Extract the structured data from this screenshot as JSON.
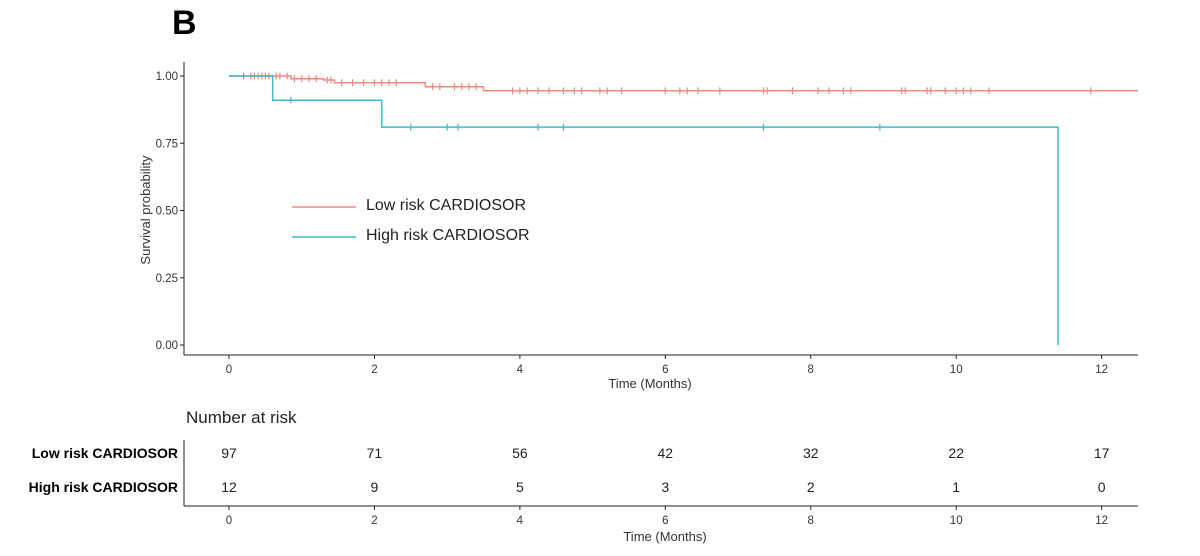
{
  "panel_label": "B",
  "colors": {
    "low": "#f08a7e",
    "high": "#3cbcc8",
    "axis": "#222222"
  },
  "chart_data": [
    {
      "type": "line",
      "subtype": "kaplan-meier step",
      "title": "",
      "xlabel": "Time (Months)",
      "ylabel": "Survival probability",
      "xlim": [
        0,
        12.5
      ],
      "ylim": [
        0,
        1
      ],
      "x_ticks": [
        0,
        2,
        4,
        6,
        8,
        10,
        12
      ],
      "y_ticks": [
        0,
        0.25,
        0.5,
        0.75,
        1
      ],
      "y_tick_labels": [
        "0.00",
        "0.25",
        "0.50",
        "0.75",
        "1.00"
      ],
      "grid": false,
      "legend_placement": "center-left",
      "series": [
        {
          "name": "Low risk CARDIOSOR",
          "color": "#f08a7e",
          "steps": [
            [
              0,
              1.0
            ],
            [
              0.85,
              0.99
            ],
            [
              1.3,
              0.985
            ],
            [
              1.45,
              0.975
            ],
            [
              2.7,
              0.96
            ],
            [
              3.5,
              0.945
            ],
            [
              12.5,
              0.945
            ]
          ],
          "censor": [
            0.2,
            0.3,
            0.35,
            0.4,
            0.45,
            0.5,
            0.55,
            0.65,
            0.7,
            0.8,
            0.9,
            1.0,
            1.1,
            1.2,
            1.35,
            1.4,
            1.55,
            1.7,
            1.85,
            2.0,
            2.1,
            2.2,
            2.3,
            2.8,
            2.9,
            3.1,
            3.2,
            3.3,
            3.4,
            3.9,
            4.0,
            4.1,
            4.25,
            4.4,
            4.6,
            4.75,
            4.85,
            5.1,
            5.2,
            5.4,
            6.0,
            6.2,
            6.3,
            6.45,
            6.75,
            7.35,
            7.4,
            7.75,
            8.1,
            8.25,
            8.45,
            8.55,
            9.25,
            9.3,
            9.6,
            9.65,
            9.85,
            10.0,
            10.1,
            10.2,
            10.45,
            11.85
          ]
        },
        {
          "name": "High risk CARDIOSOR",
          "color": "#3cbcc8",
          "steps": [
            [
              0,
              1.0
            ],
            [
              0.6,
              0.91
            ],
            [
              2.1,
              0.81
            ],
            [
              11.4,
              0.0
            ]
          ],
          "censor": [
            0.2,
            0.85,
            2.5,
            3.0,
            3.15,
            4.25,
            4.6,
            7.35,
            8.95
          ]
        }
      ]
    },
    {
      "type": "table",
      "title": "Number at risk",
      "xlabel": "Time (Months)",
      "x_ticks": [
        0,
        2,
        4,
        6,
        8,
        10,
        12
      ],
      "rows": [
        {
          "label": "Low risk CARDIOSOR",
          "values": [
            97,
            71,
            56,
            42,
            32,
            22,
            17
          ]
        },
        {
          "label": "High risk CARDIOSOR",
          "values": [
            12,
            9,
            5,
            3,
            2,
            1,
            0
          ]
        }
      ]
    }
  ]
}
